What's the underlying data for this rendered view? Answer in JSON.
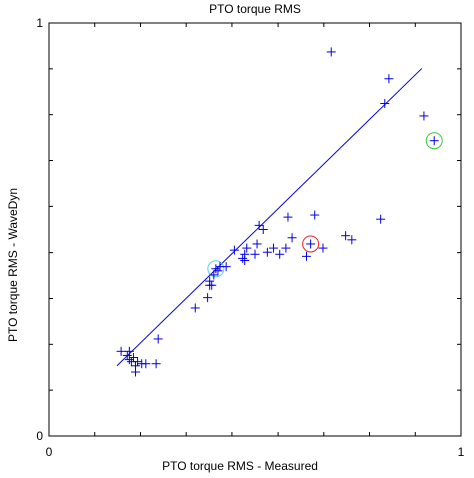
{
  "chart_data": {
    "type": "scatter",
    "title": "PTO torque RMS",
    "xlabel": "PTO torque RMS - Measured",
    "ylabel": "PTO torque RMS - WaveDyn",
    "xlim": [
      0,
      1
    ],
    "ylim": [
      0,
      1
    ],
    "x_tick_labels": [
      {
        "value": 0,
        "label": "0"
      },
      {
        "value": 1,
        "label": "1"
      }
    ],
    "y_tick_labels": [
      {
        "value": 0,
        "label": "0"
      },
      {
        "value": 1,
        "label": "1"
      }
    ],
    "minor_ticks": [
      0.111,
      0.222,
      0.333,
      0.444,
      0.556,
      0.667,
      0.778,
      0.889
    ],
    "grid": false,
    "colors": {
      "points": "#0000dd",
      "fit_line": "#0000dd",
      "highlight_cyan": "#55ccee",
      "highlight_red": "#ee2222",
      "highlight_green": "#33cc33"
    },
    "series": [
      {
        "points": [
          [
            0.175,
            0.205
          ],
          [
            0.195,
            0.205
          ],
          [
            0.19,
            0.195
          ],
          [
            0.195,
            0.185
          ],
          [
            0.2,
            0.18
          ],
          [
            0.205,
            0.19
          ],
          [
            0.215,
            0.18
          ],
          [
            0.21,
            0.17
          ],
          [
            0.225,
            0.175
          ],
          [
            0.235,
            0.175
          ],
          [
            0.21,
            0.155
          ],
          [
            0.26,
            0.175
          ],
          [
            0.265,
            0.235
          ],
          [
            0.355,
            0.31
          ],
          [
            0.385,
            0.335
          ],
          [
            0.39,
            0.365
          ],
          [
            0.39,
            0.375
          ],
          [
            0.395,
            0.365
          ],
          [
            0.4,
            0.39
          ],
          [
            0.405,
            0.405
          ],
          [
            0.415,
            0.41
          ],
          [
            0.41,
            0.4
          ],
          [
            0.43,
            0.41
          ],
          [
            0.45,
            0.45
          ],
          [
            0.47,
            0.43
          ],
          [
            0.475,
            0.44
          ],
          [
            0.48,
            0.455
          ],
          [
            0.475,
            0.425
          ],
          [
            0.505,
            0.465
          ],
          [
            0.5,
            0.44
          ],
          [
            0.51,
            0.51
          ],
          [
            0.52,
            0.5
          ],
          [
            0.53,
            0.445
          ],
          [
            0.545,
            0.455
          ],
          [
            0.56,
            0.44
          ],
          [
            0.575,
            0.455
          ],
          [
            0.58,
            0.53
          ],
          [
            0.59,
            0.48
          ],
          [
            0.625,
            0.435
          ],
          [
            0.635,
            0.465
          ],
          [
            0.645,
            0.535
          ],
          [
            0.665,
            0.455
          ],
          [
            0.685,
            0.93
          ],
          [
            0.72,
            0.485
          ],
          [
            0.735,
            0.475
          ],
          [
            0.805,
            0.525
          ],
          [
            0.815,
            0.805
          ],
          [
            0.825,
            0.865
          ],
          [
            0.91,
            0.775
          ],
          [
            0.935,
            0.715
          ]
        ]
      }
    ],
    "fit_line": {
      "x": [
        0.165,
        0.905
      ],
      "y": [
        0.17,
        0.89
      ]
    },
    "highlighted_points": [
      {
        "x": 0.405,
        "y": 0.405,
        "color": "cyan"
      },
      {
        "x": 0.635,
        "y": 0.465,
        "color": "red"
      },
      {
        "x": 0.935,
        "y": 0.715,
        "color": "green"
      }
    ]
  }
}
